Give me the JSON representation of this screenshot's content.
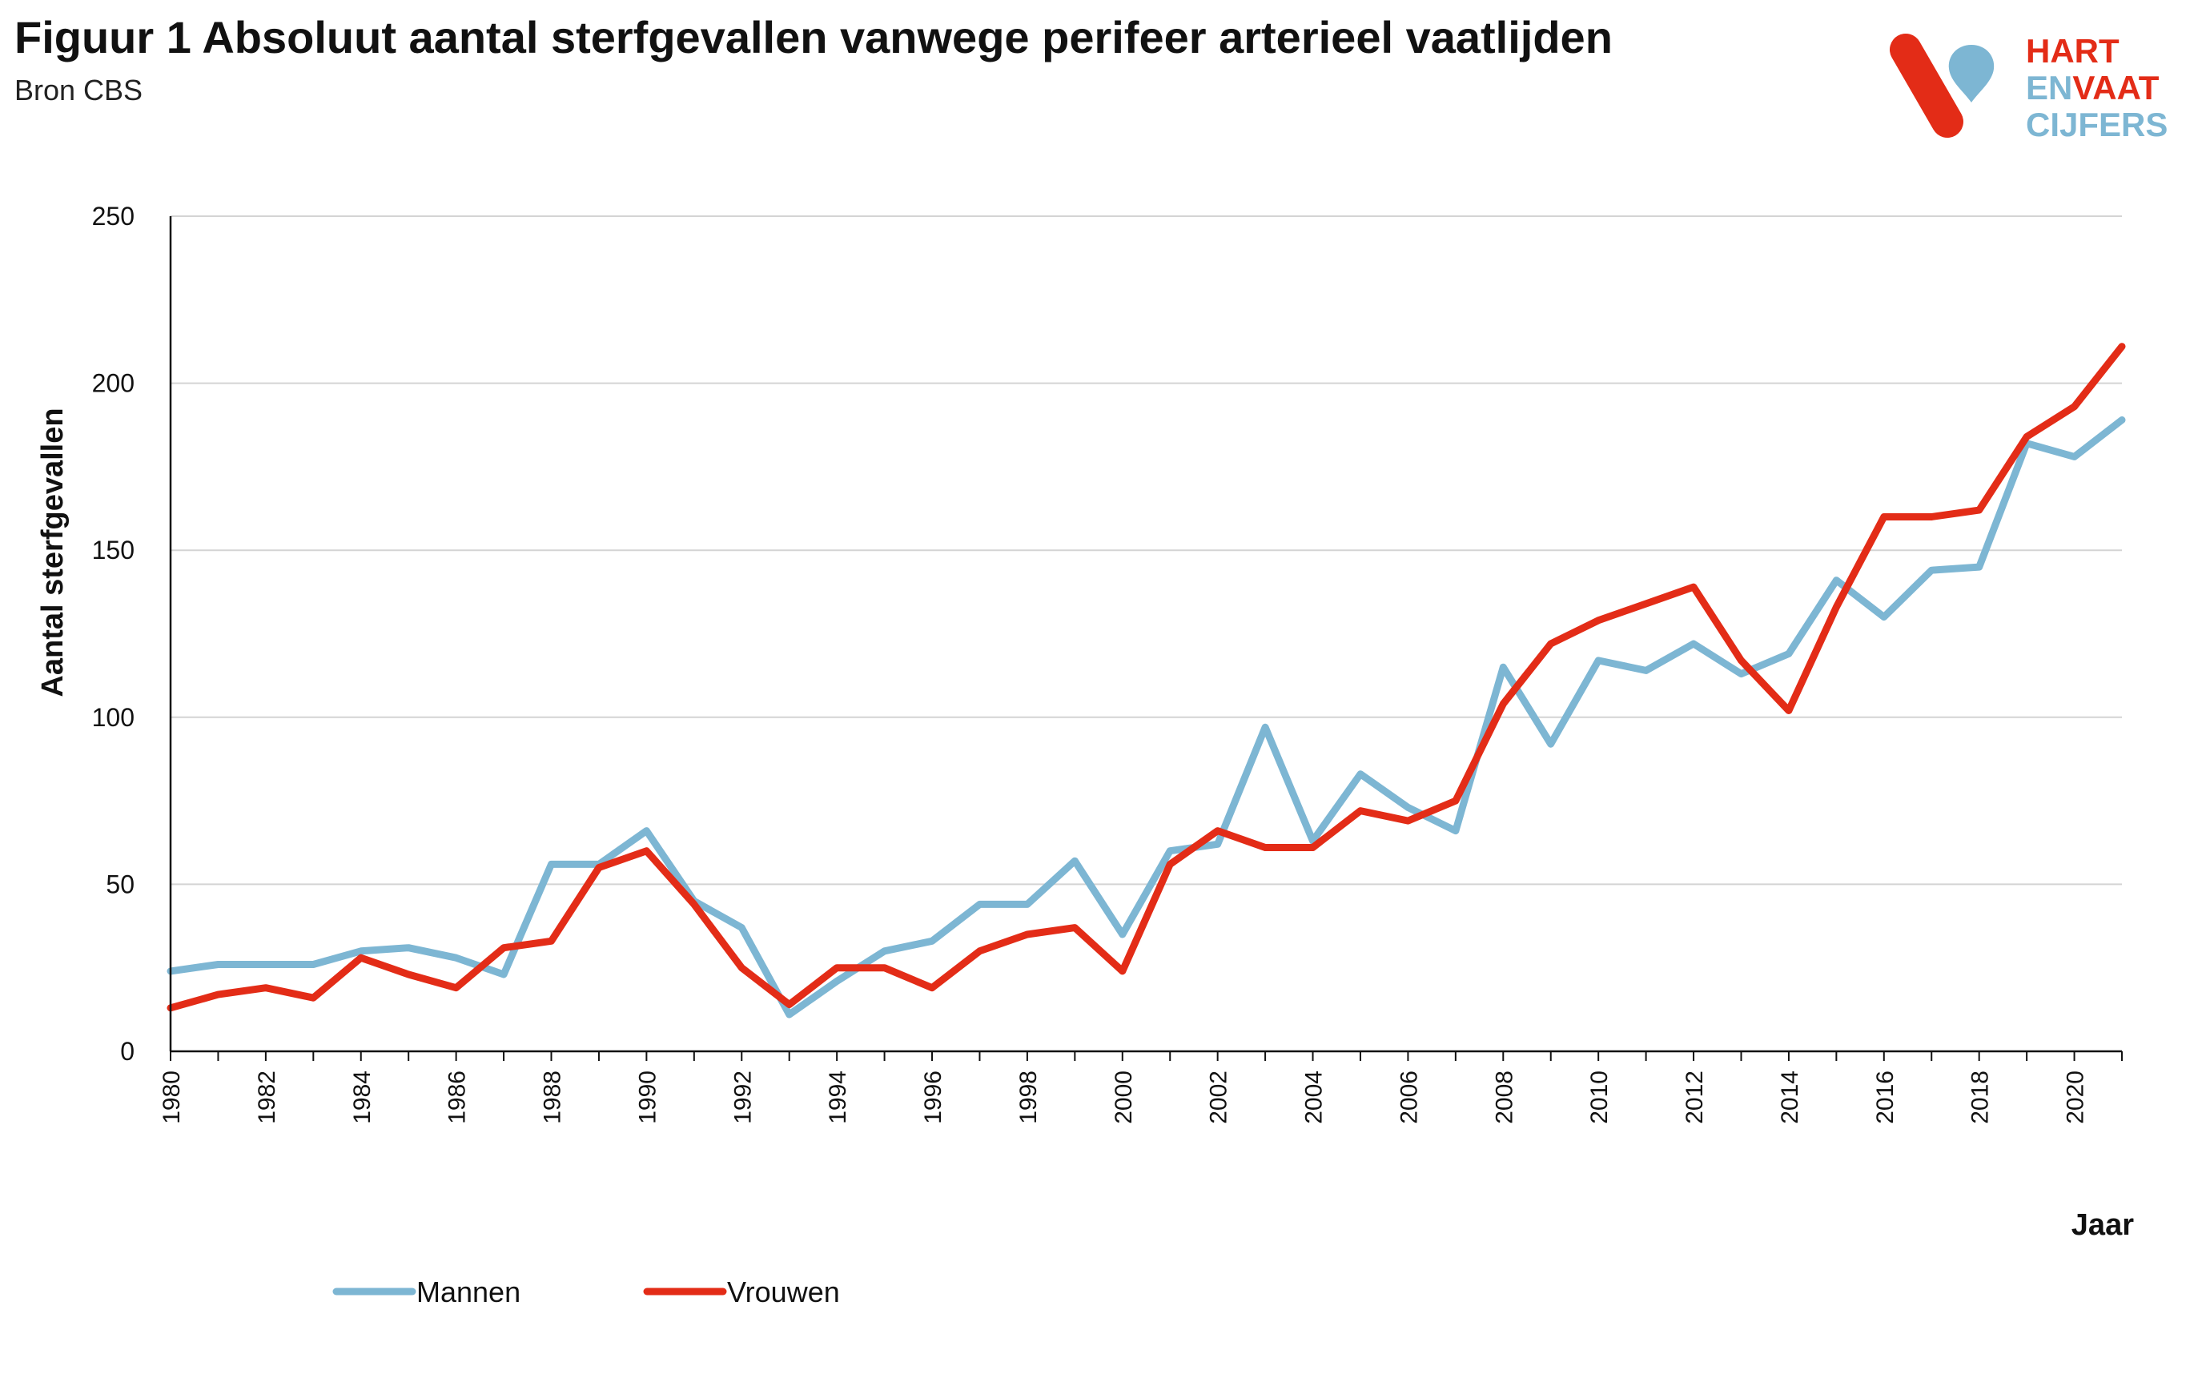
{
  "header": {
    "title": "Figuur 1 Absoluut aantal sterfgevallen vanwege perifeer arterieel vaatlijden",
    "subtitle": "Bron CBS"
  },
  "logo": {
    "line1": "HART",
    "line2a": "EN",
    "line2b": "VAAT",
    "line3": "CIJFERS",
    "colors": {
      "red": "#e32c17",
      "blue": "#7db6d3"
    }
  },
  "chart_data": {
    "type": "line",
    "title": "",
    "xlabel": "Jaar",
    "ylabel": "Aantal sterfgevallen",
    "ylim": [
      0,
      250
    ],
    "yticks": [
      0,
      50,
      100,
      150,
      200,
      250
    ],
    "xlim": [
      1980,
      2021
    ],
    "xtick_labels": [
      "1980",
      "1982",
      "1984",
      "1986",
      "1988",
      "1990",
      "1992",
      "1994",
      "1996",
      "1998",
      "2000",
      "2002",
      "2004",
      "2006",
      "2008",
      "2010",
      "2012",
      "2014",
      "2016",
      "2018",
      "2020"
    ],
    "x": [
      1980,
      1981,
      1982,
      1983,
      1984,
      1985,
      1986,
      1987,
      1988,
      1989,
      1990,
      1991,
      1992,
      1993,
      1994,
      1995,
      1996,
      1997,
      1998,
      1999,
      2000,
      2001,
      2002,
      2003,
      2004,
      2005,
      2006,
      2007,
      2008,
      2009,
      2010,
      2011,
      2012,
      2013,
      2014,
      2015,
      2016,
      2017,
      2018,
      2019,
      2020,
      2021
    ],
    "series": [
      {
        "name": "Mannen",
        "color": "#7db6d3",
        "values": [
          24,
          26,
          26,
          26,
          30,
          31,
          28,
          23,
          56,
          56,
          66,
          45,
          37,
          11,
          21,
          30,
          33,
          44,
          44,
          57,
          35,
          60,
          62,
          97,
          63,
          83,
          73,
          66,
          115,
          92,
          117,
          114,
          122,
          113,
          119,
          141,
          130,
          144,
          145,
          182,
          178,
          189
        ]
      },
      {
        "name": "Vrouwen",
        "color": "#e32c17",
        "values": [
          13,
          17,
          19,
          16,
          28,
          23,
          19,
          31,
          33,
          55,
          60,
          44,
          25,
          14,
          25,
          25,
          19,
          30,
          35,
          37,
          24,
          56,
          66,
          61,
          61,
          72,
          69,
          75,
          104,
          122,
          129,
          134,
          139,
          117,
          102,
          133,
          160,
          160,
          162,
          184,
          193,
          211
        ]
      }
    ],
    "grid": "horizontal",
    "legend_position": "bottom-left"
  }
}
